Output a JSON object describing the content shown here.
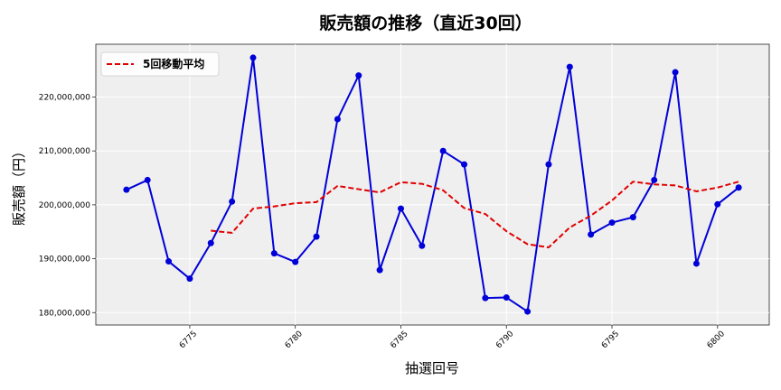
{
  "chart_data": {
    "type": "line",
    "title": "販売額の推移（直近30回）",
    "xlabel": "抽選回号",
    "ylabel": "販売額（円）",
    "x": [
      6772,
      6773,
      6774,
      6775,
      6776,
      6777,
      6778,
      6779,
      6780,
      6781,
      6782,
      6783,
      6784,
      6785,
      6786,
      6787,
      6788,
      6789,
      6790,
      6791,
      6792,
      6793,
      6794,
      6795,
      6796,
      6797,
      6798,
      6799,
      6800,
      6801
    ],
    "xlim": [
      6770.55,
      6802.45
    ],
    "ylim": [
      177700000,
      229800000
    ],
    "x_ticks": [
      6775,
      6780,
      6785,
      6790,
      6795,
      6800
    ],
    "x_tick_labels": [
      "6775",
      "6780",
      "6785",
      "6790",
      "6795",
      "6800"
    ],
    "y_ticks": [
      180000000,
      190000000,
      200000000,
      210000000,
      220000000
    ],
    "y_tick_labels": [
      "180,000,000",
      "190,000,000",
      "200,000,000",
      "210,000,000",
      "220,000,000"
    ],
    "grid": true,
    "legend_position": "top-left",
    "series": [
      {
        "values": [
          202800000,
          204600000,
          189500000,
          186300000,
          192900000,
          200600000,
          227300000,
          191000000,
          189400000,
          194100000,
          215900000,
          224000000,
          187900000,
          199300000,
          192400000,
          210000000,
          207500000,
          182700000,
          182800000,
          180200000,
          207500000,
          225600000,
          194500000,
          196700000,
          197700000,
          204600000,
          224600000,
          189100000,
          200100000,
          203200000
        ],
        "color": "#0000d8",
        "style": "solid-markers"
      },
      {
        "name": "5回移動平均",
        "x": [
          6776,
          6777,
          6778,
          6779,
          6780,
          6781,
          6782,
          6783,
          6784,
          6785,
          6786,
          6787,
          6788,
          6789,
          6790,
          6791,
          6792,
          6793,
          6794,
          6795,
          6796,
          6797,
          6798,
          6799,
          6800,
          6801
        ],
        "values": [
          195200000,
          194800000,
          199300000,
          199700000,
          200300000,
          200500000,
          203500000,
          202900000,
          202300000,
          204200000,
          203900000,
          202700000,
          199400000,
          198300000,
          195100000,
          192700000,
          192100000,
          195800000,
          198000000,
          200800000,
          204300000,
          203800000,
          203600000,
          202500000,
          203200000,
          204300000
        ],
        "color": "#e00000",
        "style": "dashed"
      }
    ]
  }
}
